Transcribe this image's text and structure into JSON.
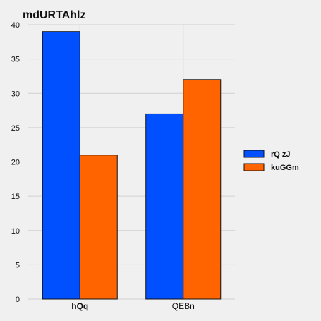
{
  "chart_data": {
    "type": "bar",
    "title": "mdURTAhlz",
    "xlabel": "",
    "ylabel": "",
    "categories": [
      "hQq",
      "QEBn"
    ],
    "category_bold": [
      true,
      false
    ],
    "series": [
      {
        "name": "rQ zJ",
        "values": [
          39,
          27
        ],
        "color": "#0050ff"
      },
      {
        "name": "kuGGm",
        "values": [
          21,
          32
        ],
        "color": "#ff6400"
      }
    ],
    "ylim": [
      0,
      40
    ],
    "yticks": [
      0,
      5,
      10,
      15,
      20,
      25,
      30,
      35,
      40
    ],
    "grid": true,
    "legend": "right"
  }
}
